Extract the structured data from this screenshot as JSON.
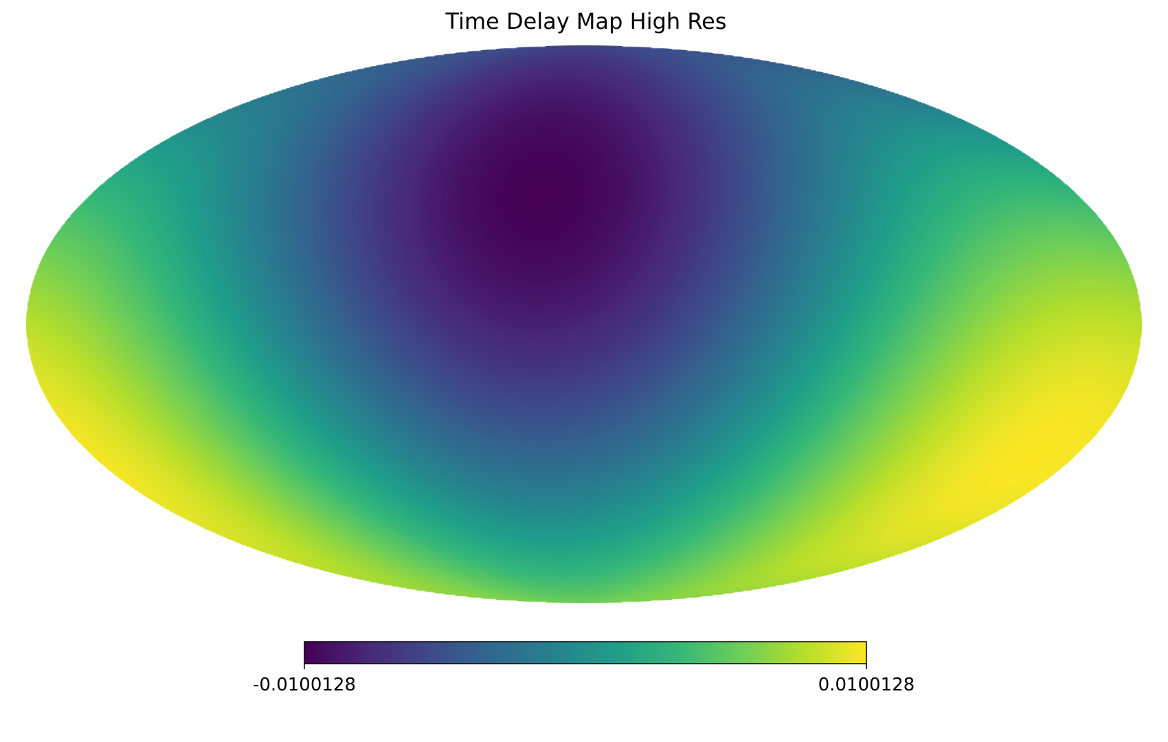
{
  "chart_data": {
    "type": "heatmap",
    "title": "Time Delay Map  High Res",
    "projection": "mollweide",
    "colormap": "viridis",
    "colormap_stops": [
      "#440154",
      "#482878",
      "#3e4989",
      "#31688e",
      "#26828e",
      "#1f9e89",
      "#35b779",
      "#6ece58",
      "#b5de2b",
      "#fde725"
    ],
    "field": {
      "description_of_pattern": "dipole",
      "min_direction": {
        "lon_deg": 15,
        "lat_deg": 35
      },
      "max_direction": {
        "lon_deg": -165,
        "lat_deg": -35
      }
    },
    "colorbar": {
      "min": -0.0100128,
      "max": 0.0100128,
      "min_label": "-0.0100128",
      "max_label": "0.0100128",
      "placement": "bottom"
    },
    "grid": false
  }
}
